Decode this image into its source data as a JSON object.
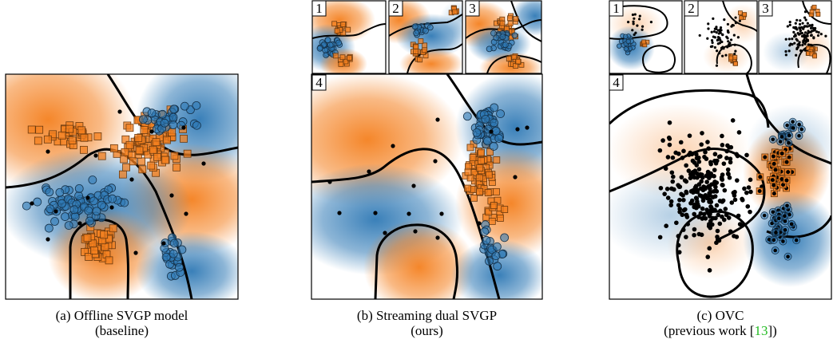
{
  "figure": {
    "panels": [
      {
        "id": "a",
        "caption_line1": "(a) Offline SVGP model",
        "caption_line2": "(baseline)"
      },
      {
        "id": "b",
        "caption_line1": "(b) Streaming dual SVGP",
        "caption_line2": "(ours)",
        "subpanel_labels": [
          "1",
          "2",
          "3",
          "4"
        ]
      },
      {
        "id": "c",
        "caption_line1": "(c) OVC",
        "caption_line2_before": "(previous work [",
        "caption_line2_cite": "13",
        "caption_line2_after": "])",
        "subpanel_labels": [
          "1",
          "2",
          "3",
          "4"
        ]
      }
    ],
    "colors": {
      "class_orange": "#f4801f",
      "class_blue": "#2f79b5",
      "boundary": "#000000",
      "cite": "#22bb22"
    },
    "marker_legend": {
      "orange_points": "square",
      "blue_points": "circle",
      "inducing_points": "black-dot"
    }
  }
}
